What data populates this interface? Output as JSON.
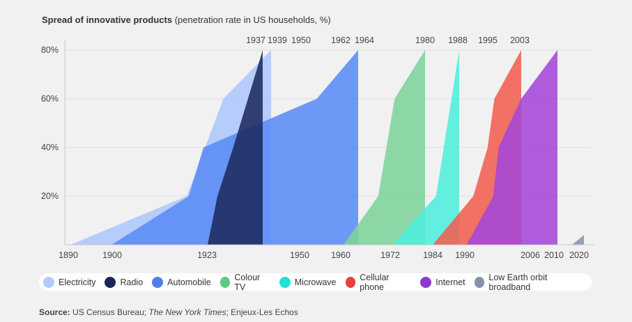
{
  "chart_data": {
    "type": "area",
    "title": "Spread of innovative products",
    "subtitle": "(penetration rate in US households, %)",
    "xlabel": "",
    "ylabel": "",
    "ylim": [
      0,
      80
    ],
    "yticks": [
      "20%",
      "40%",
      "60%",
      "80%"
    ],
    "ytick_values": [
      20,
      40,
      60,
      80
    ],
    "xticks_bottom": [
      "1890",
      "1900",
      "1923",
      "1950",
      "1960",
      "1972",
      "1984",
      "1990",
      "2006",
      "2010",
      "2020"
    ],
    "xticks_top": [
      "1937",
      "1939",
      "1950",
      "1962",
      "1964",
      "1980",
      "1988",
      "1995",
      "2003"
    ],
    "grid": true,
    "legend_position": "bottom",
    "series": [
      {
        "name": "Electricity",
        "color": "#adc6fa",
        "points": [
          [
            1890.5,
            0
          ],
          [
            1918,
            20
          ],
          [
            1927,
            60
          ],
          [
            1939,
            80
          ],
          [
            1939,
            0
          ]
        ]
      },
      {
        "name": "Automobile",
        "color": "#5b8bf5",
        "points": [
          [
            1900,
            0
          ],
          [
            1918.5,
            20
          ],
          [
            1922,
            40
          ],
          [
            1954,
            60
          ],
          [
            1964,
            80
          ],
          [
            1964,
            0
          ]
        ]
      },
      {
        "name": "Radio",
        "color": "#1e2a5e",
        "points": [
          [
            1923,
            0
          ],
          [
            1925.5,
            20
          ],
          [
            1929.5,
            40
          ],
          [
            1937,
            80
          ],
          [
            1937,
            0
          ]
        ]
      },
      {
        "name": "Colour TV",
        "color": "#7ed39b",
        "points": [
          [
            1960.5,
            0
          ],
          [
            1969,
            20
          ],
          [
            1973,
            60
          ],
          [
            1980,
            80
          ],
          [
            1980,
            0
          ]
        ]
      },
      {
        "name": "Microwave",
        "color": "#4eeedd",
        "points": [
          [
            1972.5,
            0
          ],
          [
            1984.5,
            20
          ],
          [
            1988,
            80
          ],
          [
            1988,
            0
          ]
        ]
      },
      {
        "name": "Cellular phone",
        "color": "#f05e50",
        "points": [
          [
            1984,
            0
          ],
          [
            1991.5,
            20
          ],
          [
            1994,
            40
          ],
          [
            1995.3,
            60
          ],
          [
            2003,
            80
          ],
          [
            2003,
            0
          ]
        ]
      },
      {
        "name": "Internet",
        "color": "#a447d8",
        "points": [
          [
            1990.3,
            0
          ],
          [
            1995,
            20
          ],
          [
            1996.5,
            40
          ],
          [
            2003,
            60
          ],
          [
            2010,
            80
          ],
          [
            2010,
            0
          ]
        ]
      },
      {
        "name": "Low Earth orbit broadband",
        "color": "#8793a8",
        "points": [
          [
            2015.5,
            0
          ],
          [
            2020,
            4
          ],
          [
            2020,
            0
          ]
        ]
      }
    ]
  },
  "legend": [
    {
      "label": "Electricity",
      "color": "#b3c9f9"
    },
    {
      "label": "Radio",
      "color": "#1b2657"
    },
    {
      "label": "Automobile",
      "color": "#4f7fe8"
    },
    {
      "label": "Colour TV",
      "color": "#5cc985"
    },
    {
      "label": "Microwave",
      "color": "#20e3d3"
    },
    {
      "label": "Cellular phone",
      "color": "#e8403a"
    },
    {
      "label": "Internet",
      "color": "#8e39cc"
    },
    {
      "label": "Low Earth orbit broadband",
      "color": "#8892a6"
    }
  ],
  "source": {
    "label": "Source:",
    "text_1": " US Census Bureau; ",
    "italic": "The New York Times",
    "text_2": "; Enjeux-Les Echos"
  }
}
